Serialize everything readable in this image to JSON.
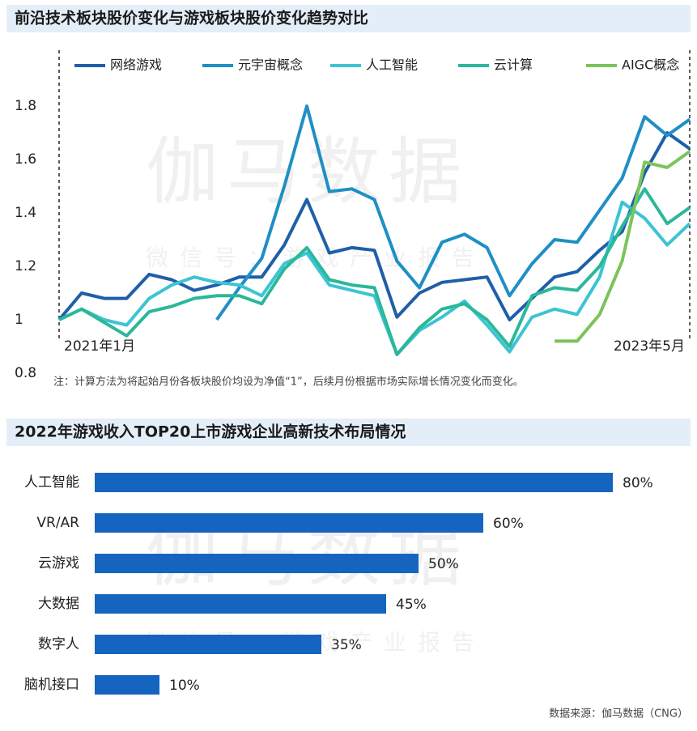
{
  "watermark": {
    "main": "伽马数据",
    "sub": "微信号：游戏产业报告"
  },
  "chart_data": [
    {
      "type": "line",
      "title": "前沿技术板块股价变化与游戏板块股价变化趋势对比",
      "categories": [
        "2021年1月",
        null,
        null,
        null,
        null,
        null,
        null,
        null,
        null,
        null,
        null,
        null,
        null,
        null,
        null,
        null,
        null,
        null,
        null,
        null,
        null,
        null,
        null,
        null,
        null,
        null,
        null,
        null,
        "2023年5月"
      ],
      "ylim": [
        0.8,
        2.0
      ],
      "yticks": [
        0.8,
        1,
        1.2,
        1.4,
        1.6,
        1.8
      ],
      "series": [
        {
          "name": "网络游戏",
          "color": "#1f5fa8",
          "values": [
            1,
            1.1,
            1.08,
            1.08,
            1.17,
            1.15,
            1.11,
            1.13,
            1.16,
            1.16,
            1.28,
            1.45,
            1.25,
            1.27,
            1.26,
            1.01,
            1.1,
            1.14,
            1.15,
            1.16,
            1.0,
            1.08,
            1.16,
            1.18,
            1.26,
            1.33,
            1.55,
            1.7,
            1.64
          ]
        },
        {
          "name": "元宇宙概念",
          "color": "#1f8fc4",
          "values": [
            null,
            null,
            null,
            null,
            null,
            null,
            null,
            1.0,
            1.12,
            1.23,
            1.5,
            1.8,
            1.48,
            1.49,
            1.45,
            1.22,
            1.12,
            1.29,
            1.32,
            1.27,
            1.09,
            1.21,
            1.3,
            1.29,
            1.41,
            1.53,
            1.76,
            1.69,
            1.75
          ]
        },
        {
          "name": "人工智能",
          "color": "#3cc4d4",
          "values": [
            1,
            1.04,
            1.0,
            0.98,
            1.08,
            1.13,
            1.16,
            1.14,
            1.13,
            1.09,
            1.21,
            1.25,
            1.13,
            1.11,
            1.09,
            0.87,
            0.96,
            1.01,
            1.07,
            0.98,
            0.88,
            1.01,
            1.04,
            1.02,
            1.16,
            1.44,
            1.38,
            1.28,
            1.36
          ]
        },
        {
          "name": "云计算",
          "color": "#2bb89a",
          "values": [
            1,
            1.04,
            0.99,
            0.94,
            1.03,
            1.05,
            1.08,
            1.09,
            1.09,
            1.06,
            1.19,
            1.27,
            1.15,
            1.13,
            1.12,
            0.87,
            0.97,
            1.04,
            1.06,
            1.0,
            0.9,
            1.09,
            1.12,
            1.11,
            1.2,
            1.35,
            1.49,
            1.36,
            1.42
          ]
        },
        {
          "name": "AIGC概念",
          "color": "#7cc35a",
          "values": [
            null,
            null,
            null,
            null,
            null,
            null,
            null,
            null,
            null,
            null,
            null,
            null,
            null,
            null,
            null,
            null,
            null,
            null,
            null,
            null,
            null,
            null,
            0.92,
            0.92,
            1.02,
            1.22,
            1.59,
            1.57,
            1.63
          ]
        }
      ],
      "note": "注：计算方法为将起始月份各板块股价均设为净值“1”，后续月份根据市场实际增长情况变化而变化。"
    },
    {
      "type": "hbar",
      "title": "2022年游戏收入TOP20上市游戏企业高新技术布局情况",
      "categories": [
        "人工智能",
        "VR/AR",
        "云游戏",
        "大数据",
        "数字人",
        "脑机接口"
      ],
      "values": [
        80,
        60,
        50,
        45,
        35,
        10
      ],
      "value_labels": [
        "80%",
        "60%",
        "50%",
        "45%",
        "35%",
        "10%"
      ],
      "color": "#1565c0",
      "source": "数据来源：伽马数据（CNG）"
    }
  ]
}
